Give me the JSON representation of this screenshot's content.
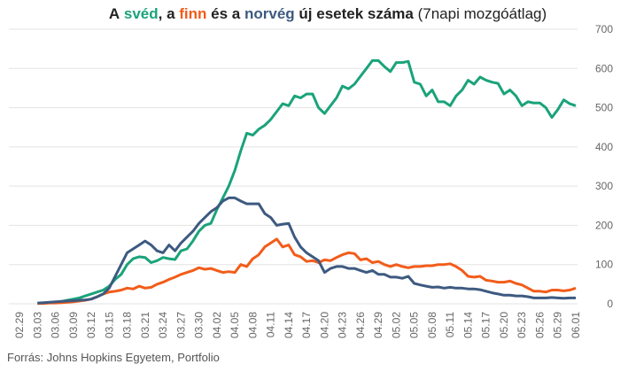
{
  "chart_data": {
    "type": "line",
    "title_parts": [
      "A",
      ", a",
      "és a",
      "új esetek száma",
      "(7napi mozgóátlag)"
    ],
    "source": "Forrás: Johns Hopkins Egyetem, Portfolio",
    "categories": [
      "02.29",
      null,
      null,
      "03.03",
      null,
      null,
      "03.06",
      null,
      null,
      "03.09",
      null,
      null,
      "03.12",
      null,
      null,
      "03.15",
      null,
      null,
      "03.18",
      null,
      null,
      "03.21",
      null,
      null,
      "03.24",
      null,
      null,
      "03.27",
      null,
      null,
      "03.30",
      null,
      null,
      "04.02",
      null,
      null,
      "04.05",
      null,
      null,
      "04.08",
      null,
      null,
      "04.11",
      null,
      null,
      "04.14",
      null,
      null,
      "04.17",
      null,
      null,
      "04.20",
      null,
      null,
      "04.23",
      null,
      null,
      "04.26",
      null,
      null,
      "04.29",
      null,
      null,
      "05.02",
      null,
      null,
      "05.05",
      null,
      null,
      "05.08",
      null,
      null,
      "05.11",
      null,
      null,
      "05.14",
      null,
      null,
      "05.17",
      null,
      null,
      "05.20",
      null,
      null,
      "05.23",
      null,
      null,
      "05.26",
      null,
      null,
      "05.29",
      null,
      null,
      "06.01"
    ],
    "series": [
      {
        "name": "svéd",
        "color": "#1aa37a",
        "values": [
          null,
          null,
          null,
          1,
          2,
          3,
          4,
          6,
          9,
          12,
          15,
          20,
          25,
          30,
          35,
          45,
          62,
          75,
          100,
          115,
          120,
          118,
          105,
          110,
          118,
          115,
          113,
          135,
          140,
          160,
          185,
          200,
          205,
          240,
          270,
          300,
          340,
          390,
          435,
          430,
          445,
          455,
          470,
          490,
          510,
          505,
          530,
          525,
          535,
          535,
          500,
          485,
          505,
          525,
          555,
          548,
          560,
          580,
          600,
          620,
          620,
          605,
          592,
          615,
          615,
          618,
          565,
          560,
          530,
          545,
          515,
          515,
          505,
          530,
          545,
          570,
          560,
          578,
          570,
          565,
          562,
          535,
          545,
          530,
          505,
          515,
          512,
          512,
          500,
          475,
          495,
          520,
          510,
          505
        ]
      },
      {
        "name": "finn",
        "color": "#f25c19",
        "values": [
          null,
          null,
          null,
          1,
          1,
          2,
          2,
          3,
          4,
          5,
          7,
          9,
          12,
          18,
          25,
          30,
          32,
          35,
          40,
          38,
          45,
          40,
          42,
          50,
          55,
          62,
          68,
          75,
          80,
          85,
          92,
          88,
          90,
          85,
          80,
          82,
          80,
          100,
          95,
          115,
          125,
          145,
          155,
          165,
          145,
          150,
          125,
          120,
          108,
          110,
          105,
          112,
          110,
          118,
          125,
          130,
          128,
          112,
          115,
          105,
          108,
          100,
          95,
          100,
          95,
          92,
          95,
          95,
          97,
          97,
          100,
          100,
          102,
          95,
          85,
          70,
          68,
          70,
          60,
          58,
          55,
          55,
          58,
          52,
          48,
          40,
          32,
          32,
          30,
          35,
          35,
          33,
          35,
          40
        ]
      },
      {
        "name": "norvég",
        "color": "#3d5a80",
        "values": [
          null,
          null,
          null,
          2,
          3,
          4,
          5,
          6,
          7,
          8,
          9,
          10,
          12,
          18,
          25,
          40,
          70,
          100,
          130,
          140,
          150,
          160,
          150,
          135,
          130,
          150,
          135,
          155,
          170,
          185,
          205,
          220,
          235,
          245,
          262,
          270,
          270,
          262,
          255,
          255,
          255,
          230,
          220,
          200,
          203,
          205,
          170,
          145,
          130,
          120,
          110,
          80,
          90,
          95,
          95,
          90,
          90,
          85,
          80,
          85,
          75,
          75,
          68,
          68,
          65,
          70,
          52,
          48,
          45,
          42,
          43,
          40,
          42,
          40,
          40,
          38,
          38,
          36,
          32,
          28,
          25,
          22,
          22,
          20,
          20,
          18,
          15,
          15,
          15,
          16,
          15,
          14,
          15,
          15
        ]
      }
    ],
    "ylim": [
      0,
      700
    ],
    "yticks": [
      0,
      100,
      200,
      300,
      400,
      500,
      600,
      700
    ],
    "grid": true
  }
}
